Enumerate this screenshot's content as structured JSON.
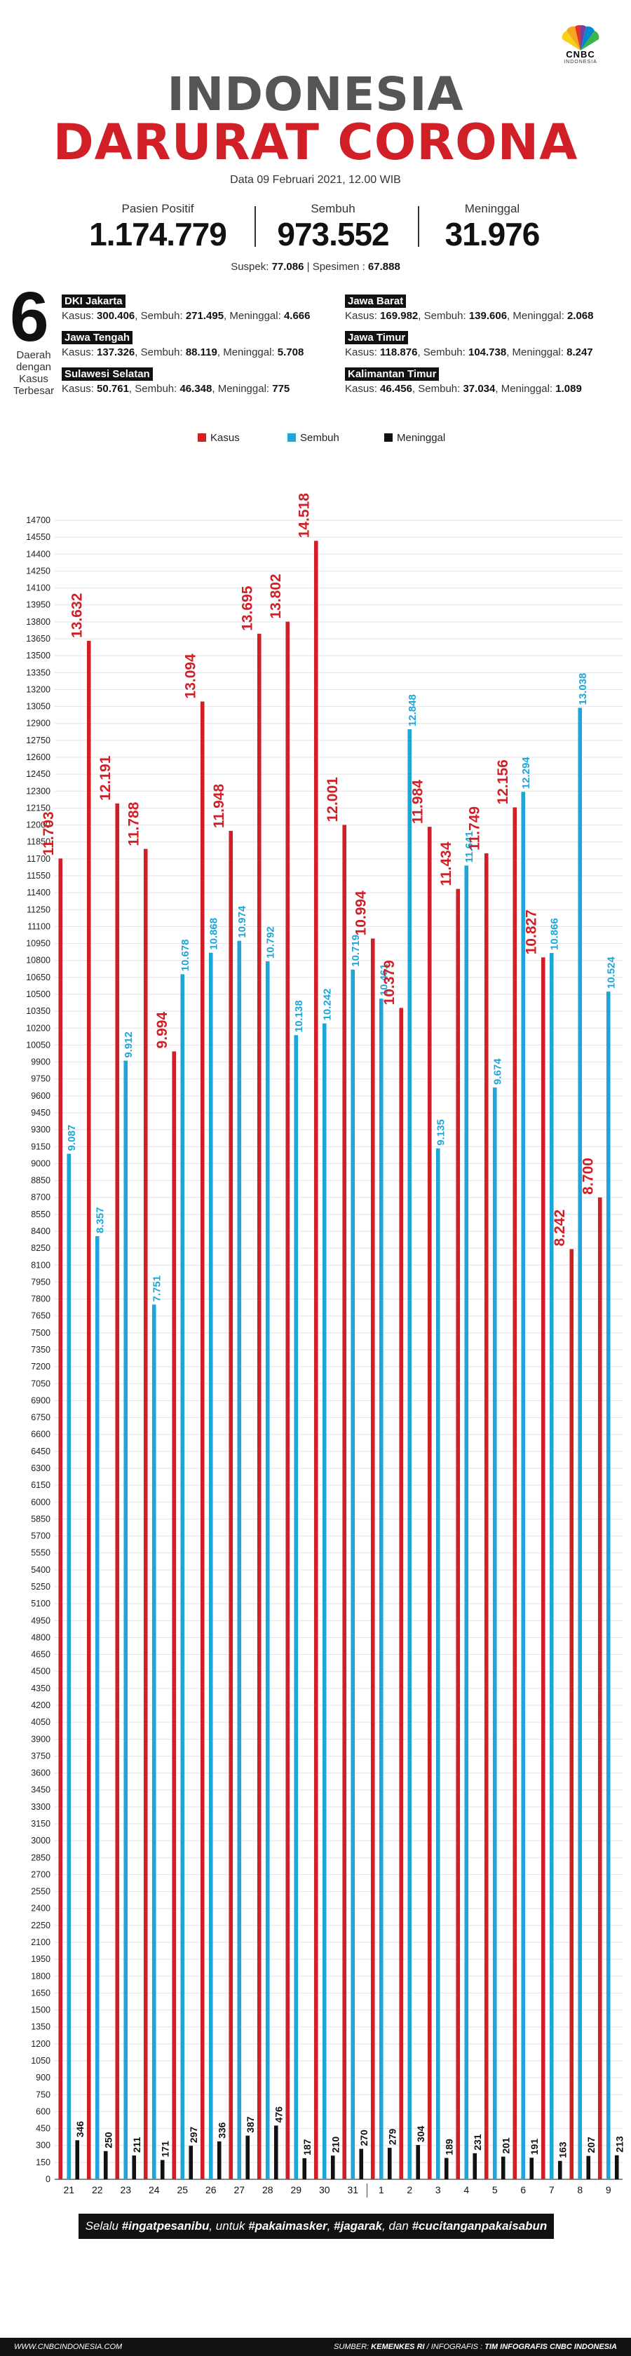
{
  "logo": {
    "text": "CNBC",
    "subtext": "INDONESIA",
    "icon": "peacock-icon"
  },
  "header": {
    "title_line1": "INDONESIA",
    "title_line2": "DARURAT CORONA",
    "date": "Data 09 Februari 2021, 12.00 WIB"
  },
  "summary": {
    "positive_label": "Pasien Positif",
    "positive_value": "1.174.779",
    "recovered_label": "Sembuh",
    "recovered_value": "973.552",
    "death_label": "Meninggal",
    "death_value": "31.976",
    "suspect_label": "Suspek:",
    "suspect_value": "77.086",
    "separator": "|",
    "specimen_label": "Spesimen :",
    "specimen_value": "67.888"
  },
  "regions": {
    "count": "6",
    "label": "Daerah dengan Kasus Terbesar",
    "items": [
      {
        "name": "DKI Jakarta",
        "kasus_label": "Kasus:",
        "kasus": "300.406",
        "sembuh_label": ", Sembuh:",
        "sembuh": "271.495",
        "meninggal_label": ", Meninggal:",
        "meninggal": "4.666"
      },
      {
        "name": "Jawa Tengah",
        "kasus_label": "Kasus:",
        "kasus": "137.326",
        "sembuh_label": ", Sembuh:",
        "sembuh": "88.119",
        "meninggal_label": ", Meninggal:",
        "meninggal": "5.708"
      },
      {
        "name": "Sulawesi Selatan",
        "kasus_label": "Kasus:",
        "kasus": "50.761",
        "sembuh_label": ", Sembuh:",
        "sembuh": "46.348",
        "meninggal_label": ", Meninggal:",
        "meninggal": "775"
      },
      {
        "name": "Jawa Barat",
        "kasus_label": "Kasus:",
        "kasus": "169.982",
        "sembuh_label": ", Sembuh:",
        "sembuh": "139.606",
        "meninggal_label": ", Meninggal:",
        "meninggal": "2.068"
      },
      {
        "name": "Jawa Timur",
        "kasus_label": "Kasus:",
        "kasus": "118.876",
        "sembuh_label": ", Sembuh:",
        "sembuh": "104.738",
        "meninggal_label": ", Meninggal:",
        "meninggal": "8.247"
      },
      {
        "name": "Kalimantan Timur",
        "kasus_label": "Kasus:",
        "kasus": "46.456",
        "sembuh_label": ", Sembuh:",
        "sembuh": "37.034",
        "meninggal_label": ", Meninggal:",
        "meninggal": "1.089"
      }
    ]
  },
  "chart_data": {
    "type": "bar",
    "categories": [
      "21",
      "22",
      "23",
      "24",
      "25",
      "26",
      "27",
      "28",
      "29",
      "30",
      "31",
      "1",
      "2",
      "3",
      "4",
      "5",
      "6",
      "7",
      "8",
      "9"
    ],
    "month_groups": [
      {
        "label": "Januari",
        "from": "21",
        "to": "31"
      },
      {
        "label": "Februari",
        "from": "1",
        "to": "9"
      }
    ],
    "series": [
      {
        "name": "Kasus",
        "color": "#d11f27",
        "labels": [
          "11.703",
          "13.632",
          "12.191",
          "11.788",
          "9.994",
          "13.094",
          "11.948",
          "13.695",
          "13.802",
          "14.518",
          "12.001",
          "10.994",
          "10.379",
          "11.984",
          "11.434",
          "11.749",
          "12.156",
          "10.827",
          "8.242",
          "8.700"
        ],
        "values": [
          11703,
          13632,
          12191,
          11788,
          9994,
          13094,
          11948,
          13695,
          13802,
          14518,
          12001,
          10994,
          10379,
          11984,
          11434,
          11749,
          12156,
          10827,
          8242,
          8700
        ]
      },
      {
        "name": "Sembuh",
        "color": "#1ea6d8",
        "labels": [
          "9.087",
          "8.357",
          "9.912",
          "7.751",
          "10.678",
          "10.868",
          "10.974",
          "10.792",
          "10.138",
          "10.242",
          "10.719",
          "10.461",
          "12.848",
          "9.135",
          "11.641",
          "9.674",
          "12.294",
          "10.866",
          "13.038",
          "10.524"
        ],
        "values": [
          9087,
          8357,
          9912,
          7751,
          10678,
          10868,
          10974,
          10792,
          10138,
          10242,
          10719,
          10461,
          12848,
          9135,
          11641,
          9674,
          12294,
          10866,
          13038,
          10524
        ]
      },
      {
        "name": "Meninggal",
        "color": "#111111",
        "labels": [
          "346",
          "250",
          "211",
          "171",
          "297",
          "336",
          "387",
          "476",
          "187",
          "210",
          "270",
          "279",
          "304",
          "189",
          "231",
          "201",
          "191",
          "163",
          "207",
          "213"
        ],
        "values": [
          346,
          250,
          211,
          171,
          297,
          336,
          387,
          476,
          187,
          210,
          270,
          279,
          304,
          189,
          231,
          201,
          191,
          163,
          207,
          213
        ]
      }
    ],
    "ylim": [
      0,
      14700
    ],
    "ytick_step": 150,
    "grid": true,
    "legend": "top-center"
  },
  "footer": {
    "slogan_prefix": "Selalu ",
    "slogan_h1": "#ingatpesanibu",
    "slogan_mid1": ", untuk ",
    "slogan_h2": "#pakaimasker",
    "slogan_mid2": ", ",
    "slogan_h3": "#jagarak",
    "slogan_mid3": ", dan ",
    "slogan_h4": "#cucitanganpakaisabun",
    "website": "WWW.CNBCINDONESIA.COM",
    "source_label": "SUMBER:",
    "source_value": "KEMENKES RI",
    "credit_label": "/ INFOGRAFIS :",
    "credit_value": "TIM INFOGRAFIS CNBC INDONESIA"
  }
}
